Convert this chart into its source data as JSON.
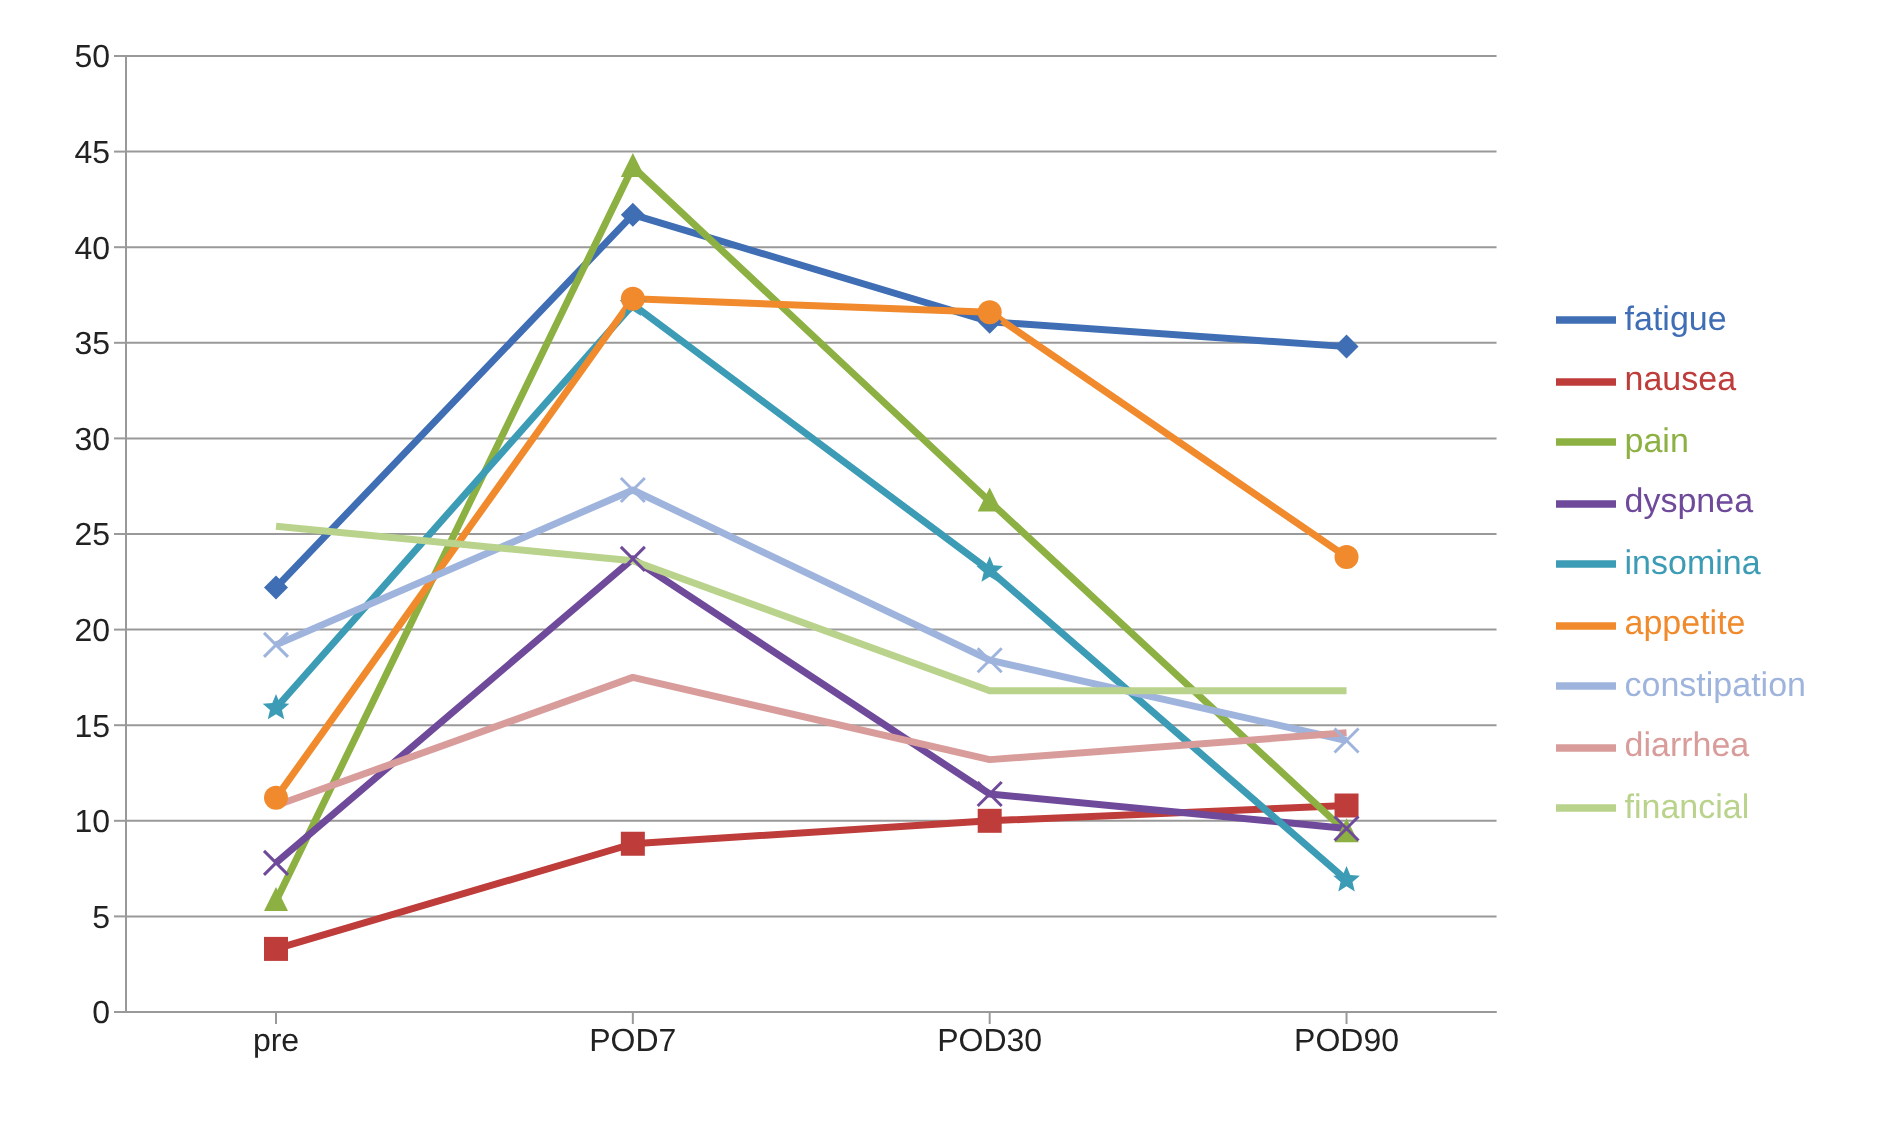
{
  "chart_data": {
    "type": "line",
    "categories": [
      "pre",
      "POD7",
      "POD30",
      "POD90"
    ],
    "series": [
      {
        "name": "fatigue",
        "color": "#3f6eb5",
        "marker": "diamond",
        "values": [
          22.2,
          41.7,
          36.1,
          34.8
        ]
      },
      {
        "name": "nausea",
        "color": "#be3c3a",
        "marker": "square",
        "values": [
          3.3,
          8.8,
          10.0,
          10.8
        ]
      },
      {
        "name": "pain",
        "color": "#8db043",
        "marker": "triangle",
        "values": [
          5.8,
          44.2,
          26.7,
          9.4
        ]
      },
      {
        "name": "dyspnea",
        "color": "#6f4a9a",
        "marker": "cross",
        "values": [
          7.8,
          23.7,
          11.4,
          9.6
        ]
      },
      {
        "name": "insomina",
        "color": "#3c9bb5",
        "marker": "star",
        "values": [
          15.9,
          37.0,
          23.1,
          6.9
        ]
      },
      {
        "name": "appetite",
        "color": "#f08a2c",
        "marker": "circle",
        "values": [
          11.2,
          37.3,
          36.6,
          23.8
        ]
      },
      {
        "name": "constipation",
        "color": "#9fb4dd",
        "marker": "cross",
        "values": [
          19.2,
          27.3,
          18.4,
          14.2
        ]
      },
      {
        "name": "diarrhea",
        "color": "#d89c9b",
        "marker": "none",
        "values": [
          10.8,
          17.5,
          13.2,
          14.6
        ]
      },
      {
        "name": "financial",
        "color": "#bad38c",
        "marker": "none",
        "values": [
          25.4,
          23.6,
          16.8,
          16.8
        ]
      }
    ],
    "ylim": [
      0,
      50
    ],
    "yticks": [
      0,
      5,
      10,
      15,
      20,
      25,
      30,
      35,
      40,
      45,
      50
    ],
    "grid": "y",
    "legend": "right"
  }
}
